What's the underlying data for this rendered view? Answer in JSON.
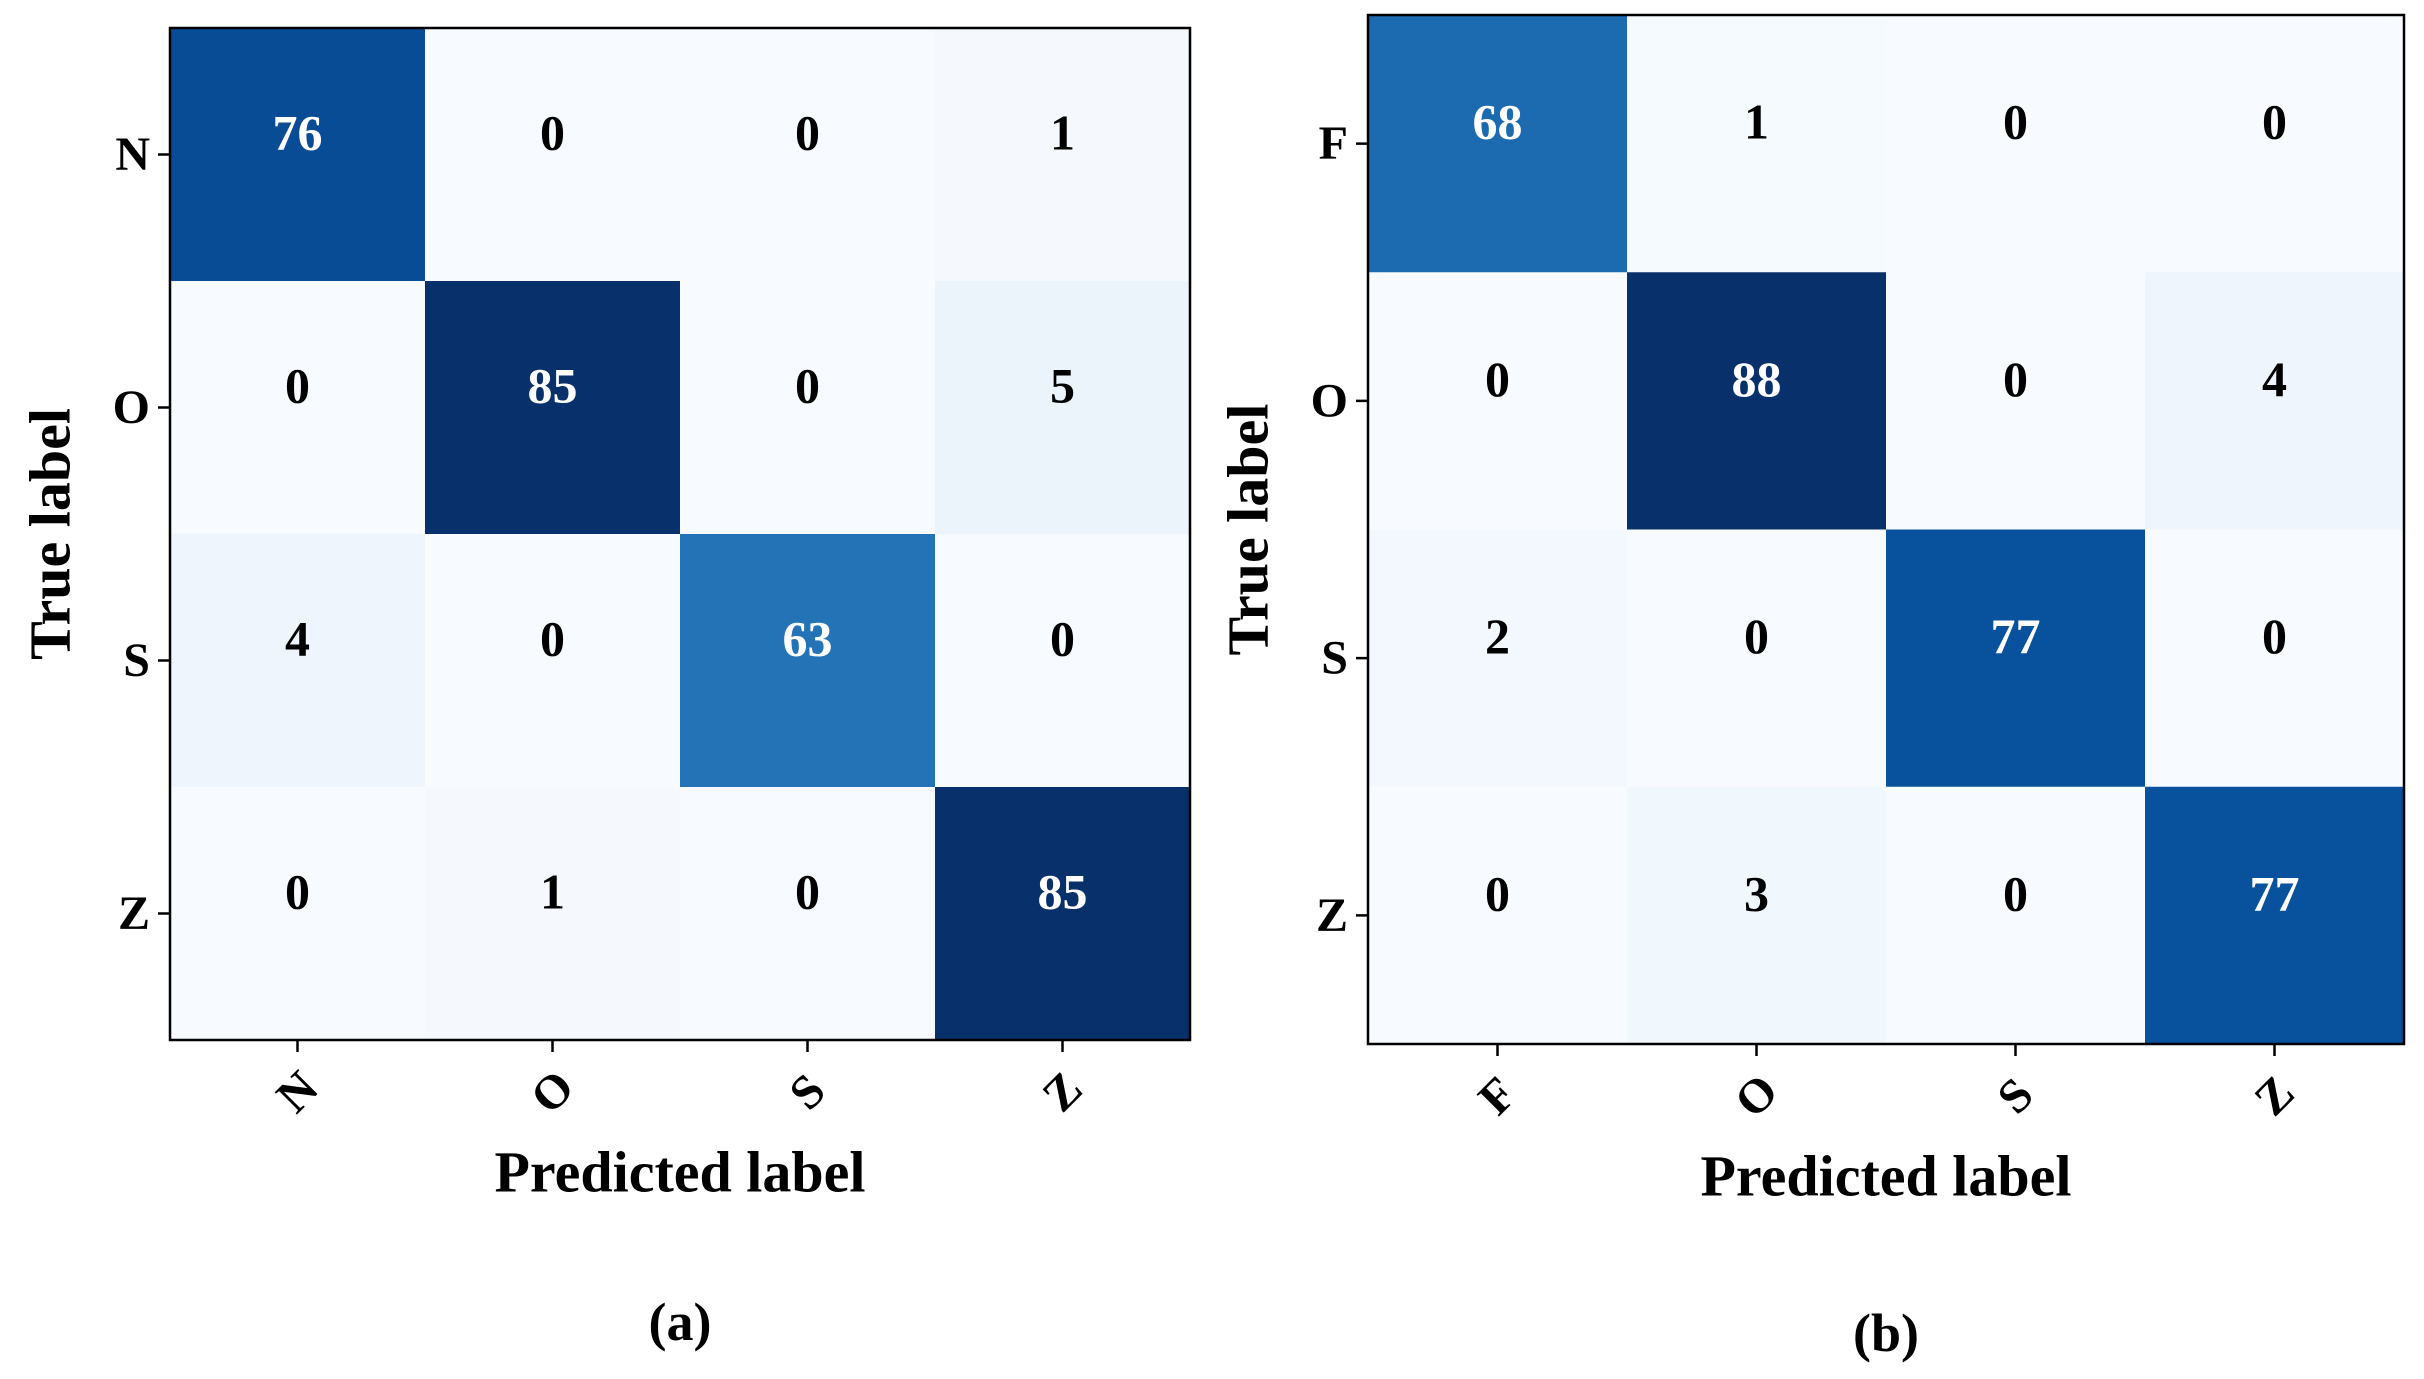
{
  "chart_data": [
    {
      "type": "heatmap",
      "caption": "(a)",
      "xlabel": "Predicted label",
      "ylabel": "True label",
      "x_categories": [
        "N",
        "O",
        "S",
        "Z"
      ],
      "y_categories": [
        "N",
        "O",
        "S",
        "Z"
      ],
      "values": [
        [
          76,
          0,
          0,
          1
        ],
        [
          0,
          85,
          0,
          5
        ],
        [
          4,
          0,
          63,
          0
        ],
        [
          0,
          1,
          0,
          85
        ]
      ],
      "colormap": "Blues"
    },
    {
      "type": "heatmap",
      "caption": "(b)",
      "xlabel": "Predicted label",
      "ylabel": "True label",
      "x_categories": [
        "F",
        "O",
        "S",
        "Z"
      ],
      "y_categories": [
        "F",
        "O",
        "S",
        "Z"
      ],
      "values": [
        [
          68,
          1,
          0,
          0
        ],
        [
          0,
          88,
          0,
          4
        ],
        [
          2,
          0,
          77,
          0
        ],
        [
          0,
          3,
          0,
          77
        ]
      ],
      "colormap": "Blues"
    }
  ]
}
